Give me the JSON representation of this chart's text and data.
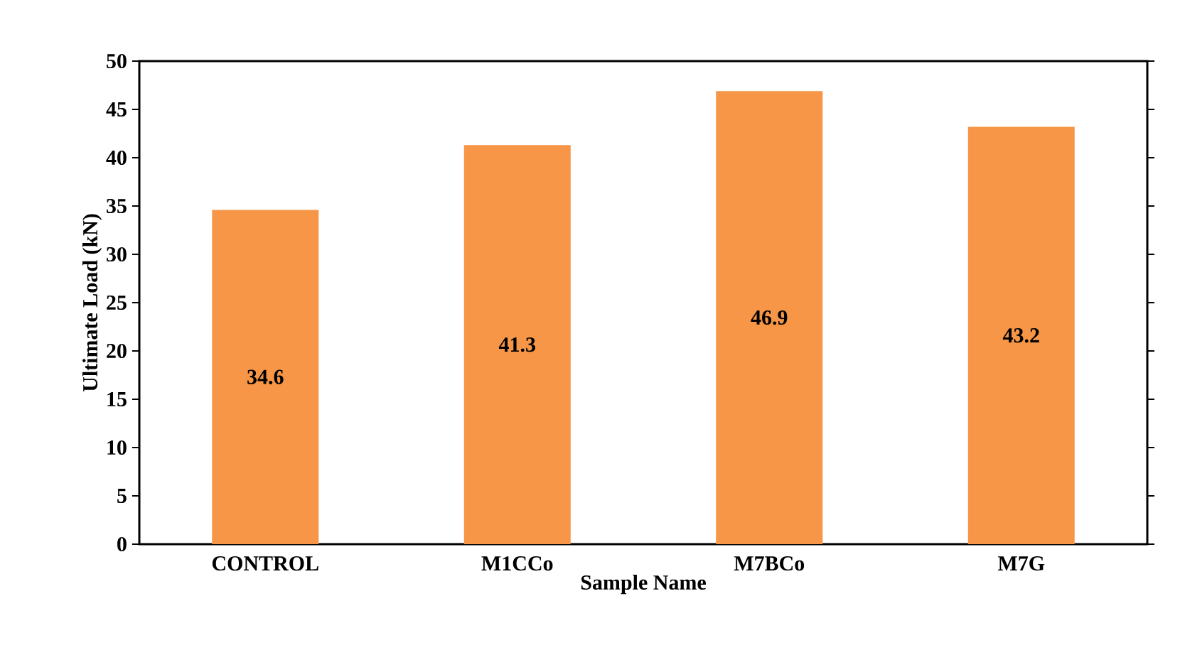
{
  "chart_data": {
    "type": "bar",
    "xlabel": "Sample Name",
    "ylabel": "Ultimate Load (kN)",
    "categories": [
      "CONTROL",
      "M1CCo",
      "M7BCo",
      "M7G"
    ],
    "values": [
      34.6,
      41.3,
      46.9,
      43.2
    ],
    "color": "#f79646",
    "ylim": [
      0,
      50
    ],
    "yticks": [
      0,
      5,
      10,
      15,
      20,
      25,
      30,
      35,
      40,
      45,
      50
    ],
    "data_labels": true,
    "grid": false
  }
}
